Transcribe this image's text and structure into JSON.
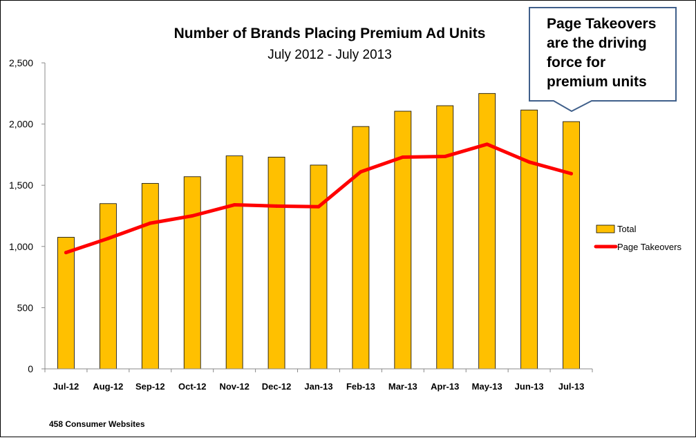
{
  "chart_data": {
    "type": "bar",
    "title": "Number of Brands Placing Premium Ad Units",
    "subtitle": "July 2012 - July 2013",
    "categories": [
      "Jul-12",
      "Aug-12",
      "Sep-12",
      "Oct-12",
      "Nov-12",
      "Dec-12",
      "Jan-13",
      "Feb-13",
      "Mar-13",
      "Apr-13",
      "May-13",
      "Jun-13",
      "Jul-13"
    ],
    "series": [
      {
        "name": "Total",
        "kind": "bar",
        "color": "#FFC000",
        "values": [
          1075,
          1350,
          1515,
          1570,
          1740,
          1730,
          1665,
          1980,
          2105,
          2150,
          2250,
          2115,
          2020
        ]
      },
      {
        "name": "Page Takeovers",
        "kind": "line",
        "color": "#FF0000",
        "values": [
          950,
          1065,
          1190,
          1250,
          1340,
          1330,
          1325,
          1610,
          1730,
          1735,
          1835,
          1690,
          1595
        ]
      }
    ],
    "ylim": [
      0,
      2500
    ],
    "yticks": [
      0,
      500,
      1000,
      1500,
      2000,
      2500
    ],
    "ytick_labels": [
      "0",
      "500",
      "1,000",
      "1,500",
      "2,000",
      "2,500"
    ],
    "xlabel": "",
    "ylabel": "",
    "grid": false,
    "legend_position": "right"
  },
  "callout": {
    "lines": [
      "Page Takeovers",
      "are the driving",
      "force for",
      "premium units"
    ],
    "border_color": "#3F5F8A"
  },
  "footnote": "458  Consumer  Websites"
}
